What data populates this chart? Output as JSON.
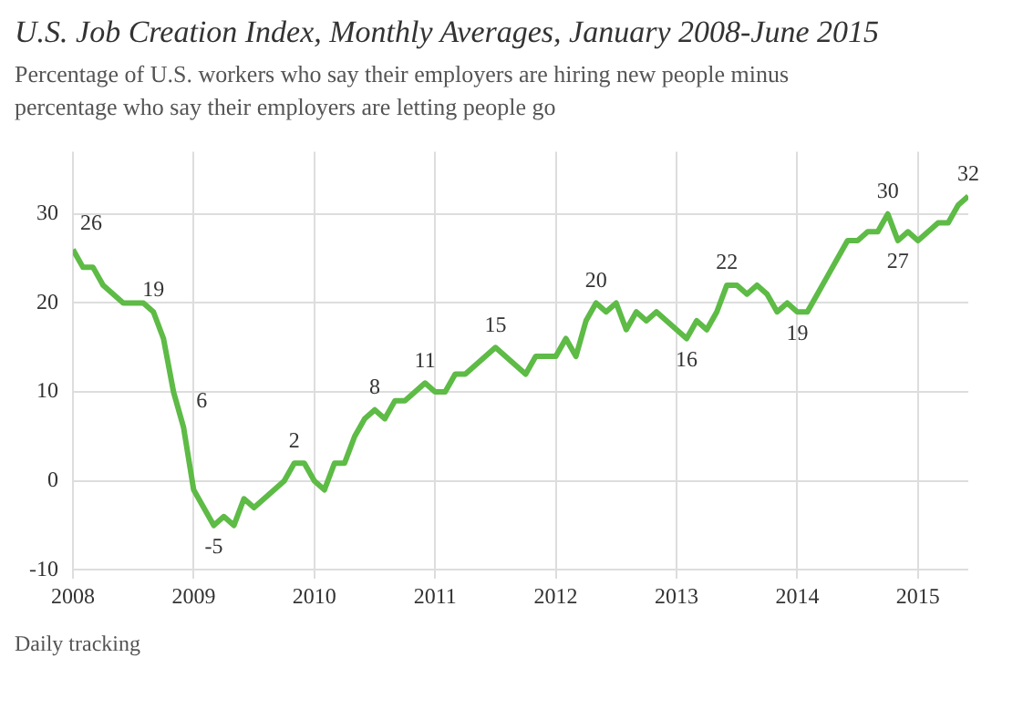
{
  "chart_data": {
    "type": "line",
    "title": "U.S. Job Creation Index, Monthly Averages, January 2008-June 2015",
    "subtitle": "Percentage of U.S. workers who say their employers are hiring new people minus percentage who say their employers are letting people go",
    "x": [
      "2008-01",
      "2008-02",
      "2008-03",
      "2008-04",
      "2008-05",
      "2008-06",
      "2008-07",
      "2008-08",
      "2008-09",
      "2008-10",
      "2008-11",
      "2008-12",
      "2009-01",
      "2009-02",
      "2009-03",
      "2009-04",
      "2009-05",
      "2009-06",
      "2009-07",
      "2009-08",
      "2009-09",
      "2009-10",
      "2009-11",
      "2009-12",
      "2010-01",
      "2010-02",
      "2010-03",
      "2010-04",
      "2010-05",
      "2010-06",
      "2010-07",
      "2010-08",
      "2010-09",
      "2010-10",
      "2010-11",
      "2010-12",
      "2011-01",
      "2011-02",
      "2011-03",
      "2011-04",
      "2011-05",
      "2011-06",
      "2011-07",
      "2011-08",
      "2011-09",
      "2011-10",
      "2011-11",
      "2011-12",
      "2012-01",
      "2012-02",
      "2012-03",
      "2012-04",
      "2012-05",
      "2012-06",
      "2012-07",
      "2012-08",
      "2012-09",
      "2012-10",
      "2012-11",
      "2012-12",
      "2013-01",
      "2013-02",
      "2013-03",
      "2013-04",
      "2013-05",
      "2013-06",
      "2013-07",
      "2013-08",
      "2013-09",
      "2013-10",
      "2013-11",
      "2013-12",
      "2014-01",
      "2014-02",
      "2014-03",
      "2014-04",
      "2014-05",
      "2014-06",
      "2014-07",
      "2014-08",
      "2014-09",
      "2014-10",
      "2014-11",
      "2014-12",
      "2015-01",
      "2015-02",
      "2015-03",
      "2015-04",
      "2015-05",
      "2015-06"
    ],
    "series": [
      {
        "color": "#5dbb46",
        "values": [
          26,
          24,
          24,
          22,
          21,
          20,
          20,
          20,
          19,
          16,
          10,
          6,
          -1,
          -3,
          -5,
          -4,
          -5,
          -2,
          -3,
          -2,
          -1,
          0,
          2,
          2,
          0,
          -1,
          2,
          2,
          5,
          7,
          8,
          7,
          9,
          9,
          10,
          11,
          10,
          10,
          12,
          12,
          13,
          14,
          15,
          14,
          13,
          12,
          14,
          14,
          14,
          16,
          14,
          18,
          20,
          19,
          20,
          17,
          19,
          18,
          19,
          18,
          17,
          16,
          18,
          17,
          19,
          22,
          22,
          21,
          22,
          21,
          19,
          20,
          19,
          19,
          21,
          23,
          25,
          27,
          27,
          28,
          28,
          30,
          27,
          28,
          27,
          28,
          29,
          29,
          31,
          32
        ]
      }
    ],
    "xlim": [
      "2008-01",
      "2015-06"
    ],
    "xticks": [
      "2008",
      "2009",
      "2010",
      "2011",
      "2012",
      "2013",
      "2014",
      "2015"
    ],
    "ylim": [
      -11,
      37
    ],
    "yticks": [
      -10,
      0,
      10,
      20,
      30
    ],
    "grid": true,
    "legend": false,
    "marker": "none",
    "line_style": "solid",
    "annotations": [
      {
        "text": "26",
        "x": "2008-01",
        "y": 26
      },
      {
        "text": "19",
        "x": "2008-09",
        "y": 19
      },
      {
        "text": "6",
        "x": "2008-12",
        "y": 6
      },
      {
        "text": "-5",
        "x": "2009-03",
        "y": -5
      },
      {
        "text": "2",
        "x": "2009-11",
        "y": 2
      },
      {
        "text": "8",
        "x": "2010-07",
        "y": 8
      },
      {
        "text": "11",
        "x": "2010-12",
        "y": 11
      },
      {
        "text": "15",
        "x": "2011-07",
        "y": 15
      },
      {
        "text": "20",
        "x": "2012-05",
        "y": 20
      },
      {
        "text": "16",
        "x": "2013-02",
        "y": 16
      },
      {
        "text": "22",
        "x": "2013-06",
        "y": 22
      },
      {
        "text": "19",
        "x": "2014-01",
        "y": 19
      },
      {
        "text": "30",
        "x": "2014-10",
        "y": 30
      },
      {
        "text": "27",
        "x": "2014-11",
        "y": 27
      },
      {
        "text": "32",
        "x": "2015-06",
        "y": 32
      },
      "Daily tracking"
    ]
  }
}
